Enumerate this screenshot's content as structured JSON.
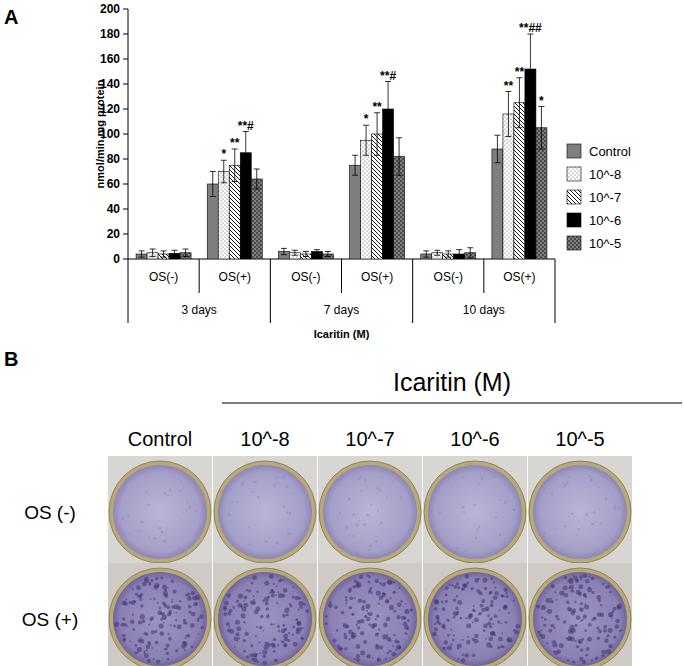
{
  "chart_data": {
    "type": "bar",
    "y_label": "nmol/min.mg protein",
    "x_label": "Icaritin (M)",
    "categories": [
      "OS(-)",
      "OS(+)",
      "OS(-)",
      "OS(+)",
      "OS(-)",
      "OS(+)"
    ],
    "category_groups": [
      "3 days",
      "7 days",
      "10 days"
    ],
    "ylim": [
      0,
      200
    ],
    "yticks": [
      0,
      20,
      40,
      60,
      80,
      100,
      120,
      140,
      160,
      180,
      200
    ],
    "grid": false,
    "legend": "right",
    "series": [
      {
        "name": "Control",
        "color": "#7f7f7f",
        "values": [
          4,
          60,
          6,
          75,
          4,
          88
        ],
        "errors": [
          2.5,
          10,
          2.5,
          8,
          2.5,
          11
        ],
        "significance": [
          null,
          null,
          null,
          null,
          null,
          null
        ]
      },
      {
        "name": "10^-8",
        "color": "#ffffff",
        "values": [
          5,
          70,
          5,
          95,
          5,
          116
        ],
        "errors": [
          3,
          9,
          2,
          12,
          2,
          18
        ],
        "significance": [
          null,
          "*",
          null,
          "*",
          null,
          "**"
        ]
      },
      {
        "name": "10^-7",
        "color": "#ffffff",
        "values": [
          4,
          75,
          4,
          100,
          4,
          125
        ],
        "errors": [
          2.5,
          13,
          2,
          17,
          2.5,
          20
        ],
        "significance": [
          null,
          "**",
          null,
          "**",
          null,
          "**"
        ]
      },
      {
        "name": "10^-6",
        "color": "#000000",
        "values": [
          4.5,
          85,
          6,
          120,
          4,
          152
        ],
        "errors": [
          2.5,
          17,
          1.5,
          22,
          3.5,
          28
        ],
        "significance": [
          null,
          "**#",
          null,
          "**#",
          null,
          "**##"
        ]
      },
      {
        "name": "10^-5",
        "color": "#7f7f7f",
        "values": [
          5,
          64,
          4,
          82,
          5,
          105
        ],
        "errors": [
          3,
          8,
          2,
          15,
          4,
          17
        ],
        "significance": [
          null,
          null,
          null,
          null,
          null,
          "*"
        ]
      }
    ]
  },
  "panel_labels": [
    "A",
    "B"
  ],
  "wells": {
    "title": "Icaritin (M)",
    "columns": [
      "Control",
      "10^-8",
      "10^-7",
      "10^-6",
      "10^-5"
    ],
    "rows": [
      "OS (-)",
      "OS (+)"
    ]
  }
}
